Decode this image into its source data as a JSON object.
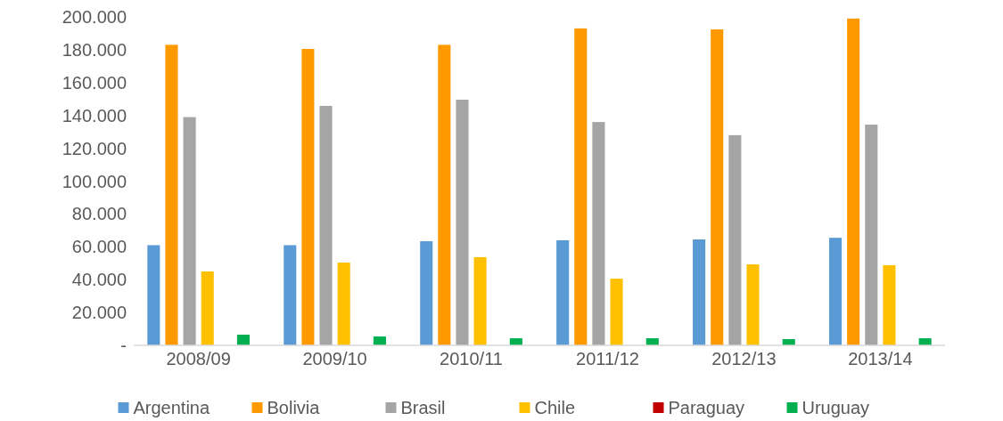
{
  "chart_data": {
    "type": "bar",
    "categories": [
      "2008/09",
      "2009/10",
      "2010/11",
      "2011/12",
      "2012/13",
      "2013/14"
    ],
    "series": [
      {
        "name": "Argentina",
        "color": "#5b9bd5",
        "values": [
          61000,
          61000,
          63400,
          64000,
          64500,
          65500
        ]
      },
      {
        "name": "Bolivia",
        "color": "#ff9900",
        "values": [
          183000,
          180500,
          183000,
          193000,
          192400,
          199000
        ]
      },
      {
        "name": "Brasil",
        "color": "#a5a5a5",
        "values": [
          139000,
          145800,
          149600,
          136000,
          128000,
          134400
        ]
      },
      {
        "name": "Chile",
        "color": "#ffc000",
        "values": [
          45000,
          50400,
          53700,
          40600,
          49300,
          48800
        ]
      },
      {
        "name": "Paraguay",
        "color": "#c00000",
        "values": [
          0,
          0,
          0,
          0,
          0,
          0
        ]
      },
      {
        "name": "Uruguay",
        "color": "#00b050",
        "values": [
          6500,
          5400,
          4300,
          4300,
          3800,
          4300
        ]
      }
    ],
    "ylim": [
      0,
      200000
    ],
    "yticks": [
      {
        "value": 0,
        "label": "-"
      },
      {
        "value": 20000,
        "label": "20.000"
      },
      {
        "value": 40000,
        "label": "40.000"
      },
      {
        "value": 60000,
        "label": "60.000"
      },
      {
        "value": 80000,
        "label": "80.000"
      },
      {
        "value": 100000,
        "label": "100.000"
      },
      {
        "value": 120000,
        "label": "120.000"
      },
      {
        "value": 140000,
        "label": "140.000"
      },
      {
        "value": 160000,
        "label": "160.000"
      },
      {
        "value": 180000,
        "label": "180.000"
      },
      {
        "value": 200000,
        "label": "200.000"
      }
    ],
    "grid": false,
    "legend": "bottom"
  }
}
